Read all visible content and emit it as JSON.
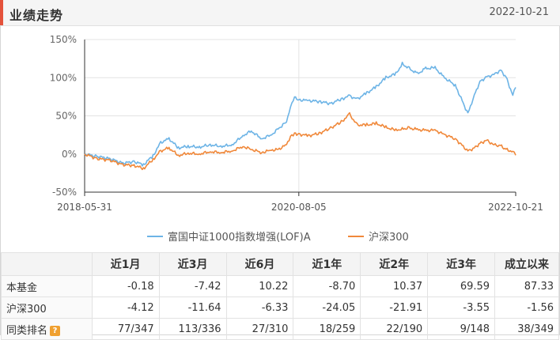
{
  "header": {
    "title": "业绩走势",
    "date": "2022-10-21"
  },
  "colors": {
    "fund": "#6db4e6",
    "index": "#f0883a",
    "accent": "#e4523b"
  },
  "chart_data": {
    "type": "line",
    "y_ticks": [
      "150%",
      "100%",
      "50%",
      "0%",
      "-50%"
    ],
    "x_ticks": [
      "2018-05-31",
      "2020-08-05",
      "2022-10-21"
    ],
    "ylim": [
      -50,
      150
    ],
    "y_unit": "%",
    "grid": true,
    "legend_position": "bottom",
    "series": [
      {
        "name": "富国中证1000指数增强(LOF)A",
        "color": "#6db4e6",
        "points": [
          [
            "2018-05-31",
            0
          ],
          [
            "2018-07-15",
            -3
          ],
          [
            "2018-09-01",
            -6
          ],
          [
            "2018-10-20",
            -12
          ],
          [
            "2018-12-01",
            -10
          ],
          [
            "2019-01-05",
            -14
          ],
          [
            "2019-02-10",
            -2
          ],
          [
            "2019-03-10",
            15
          ],
          [
            "2019-04-10",
            20
          ],
          [
            "2019-05-15",
            8
          ],
          [
            "2019-06-20",
            10
          ],
          [
            "2019-08-01",
            9
          ],
          [
            "2019-09-10",
            12
          ],
          [
            "2019-10-20",
            10
          ],
          [
            "2019-12-01",
            12
          ],
          [
            "2020-01-10",
            24
          ],
          [
            "2020-02-10",
            30
          ],
          [
            "2020-03-20",
            20
          ],
          [
            "2020-04-25",
            25
          ],
          [
            "2020-05-20",
            33
          ],
          [
            "2020-06-20",
            42
          ],
          [
            "2020-07-05",
            62
          ],
          [
            "2020-07-20",
            75
          ],
          [
            "2020-08-05",
            71
          ],
          [
            "2020-09-10",
            70
          ],
          [
            "2020-10-20",
            69
          ],
          [
            "2020-12-01",
            66
          ],
          [
            "2021-01-10",
            72
          ],
          [
            "2021-02-10",
            76
          ],
          [
            "2021-03-10",
            72
          ],
          [
            "2021-04-15",
            80
          ],
          [
            "2021-05-20",
            88
          ],
          [
            "2021-06-25",
            100
          ],
          [
            "2021-08-01",
            105
          ],
          [
            "2021-08-25",
            118
          ],
          [
            "2021-09-20",
            112
          ],
          [
            "2021-10-20",
            105
          ],
          [
            "2021-11-20",
            112
          ],
          [
            "2021-12-25",
            113
          ],
          [
            "2022-01-25",
            101
          ],
          [
            "2022-03-10",
            90
          ],
          [
            "2022-04-26",
            53
          ],
          [
            "2022-05-20",
            77
          ],
          [
            "2022-06-10",
            95
          ],
          [
            "2022-07-05",
            101
          ],
          [
            "2022-08-01",
            104
          ],
          [
            "2022-08-25",
            110
          ],
          [
            "2022-09-15",
            101
          ],
          [
            "2022-10-10",
            77
          ],
          [
            "2022-10-21",
            87.33
          ]
        ]
      },
      {
        "name": "沪深300",
        "color": "#f0883a",
        "points": [
          [
            "2018-05-31",
            0
          ],
          [
            "2018-07-15",
            -6
          ],
          [
            "2018-09-01",
            -8
          ],
          [
            "2018-10-20",
            -14
          ],
          [
            "2018-12-01",
            -15
          ],
          [
            "2019-01-05",
            -19
          ],
          [
            "2019-02-10",
            -7
          ],
          [
            "2019-03-10",
            4
          ],
          [
            "2019-04-10",
            8
          ],
          [
            "2019-05-15",
            -2
          ],
          [
            "2019-06-20",
            1
          ],
          [
            "2019-08-01",
            0
          ],
          [
            "2019-09-10",
            3
          ],
          [
            "2019-10-20",
            2
          ],
          [
            "2019-12-01",
            4
          ],
          [
            "2020-01-10",
            10
          ],
          [
            "2020-02-10",
            6
          ],
          [
            "2020-03-20",
            2
          ],
          [
            "2020-04-25",
            5
          ],
          [
            "2020-05-20",
            6
          ],
          [
            "2020-06-20",
            12
          ],
          [
            "2020-07-05",
            23
          ],
          [
            "2020-07-20",
            27
          ],
          [
            "2020-08-05",
            26
          ],
          [
            "2020-09-10",
            24
          ],
          [
            "2020-10-20",
            27
          ],
          [
            "2020-12-01",
            34
          ],
          [
            "2021-01-10",
            42
          ],
          [
            "2021-02-10",
            52
          ],
          [
            "2021-03-10",
            38
          ],
          [
            "2021-04-15",
            38
          ],
          [
            "2021-05-20",
            40
          ],
          [
            "2021-06-25",
            35
          ],
          [
            "2021-08-01",
            31
          ],
          [
            "2021-08-25",
            33
          ],
          [
            "2021-09-20",
            34
          ],
          [
            "2021-10-20",
            32
          ],
          [
            "2021-11-20",
            31
          ],
          [
            "2021-12-25",
            31
          ],
          [
            "2022-01-25",
            26
          ],
          [
            "2022-03-10",
            20
          ],
          [
            "2022-04-26",
            4
          ],
          [
            "2022-05-20",
            8
          ],
          [
            "2022-06-10",
            14
          ],
          [
            "2022-07-05",
            18
          ],
          [
            "2022-08-01",
            12
          ],
          [
            "2022-08-25",
            11
          ],
          [
            "2022-09-15",
            6
          ],
          [
            "2022-10-10",
            3
          ],
          [
            "2022-10-21",
            -1.56
          ]
        ]
      }
    ]
  },
  "table": {
    "headers": [
      "",
      "近1月",
      "近3月",
      "近6月",
      "近1年",
      "近2年",
      "近3年",
      "成立以来"
    ],
    "rows": [
      {
        "label": "本基金",
        "values": [
          "-0.18",
          "-7.42",
          "10.22",
          "-8.70",
          "10.37",
          "69.59",
          "87.33"
        ]
      },
      {
        "label": "沪深300",
        "values": [
          "-4.12",
          "-11.64",
          "-6.33",
          "-24.05",
          "-21.91",
          "-3.55",
          "-1.56"
        ]
      },
      {
        "label": "同类排名",
        "values": [
          "77/347",
          "113/336",
          "27/310",
          "18/259",
          "22/190",
          "9/148",
          "38/349"
        ]
      }
    ],
    "help_icon_glyph": "?"
  }
}
